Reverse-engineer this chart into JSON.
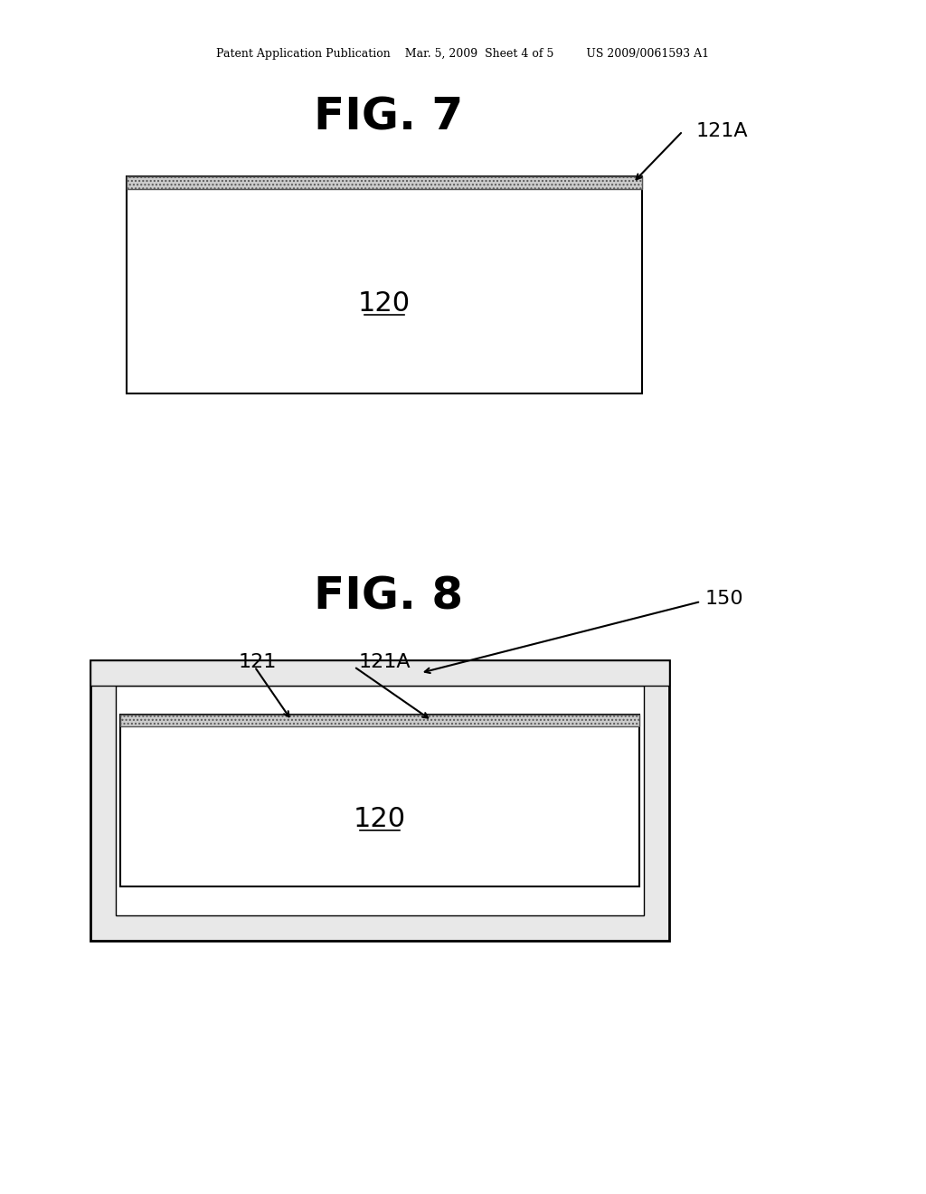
{
  "background_color": "#ffffff",
  "header_text": "Patent Application Publication    Mar. 5, 2009  Sheet 4 of 5         US 2009/0061593 A1",
  "fig7_title": "FIG. 7",
  "fig8_title": "FIG. 8",
  "fig7_label_120": "120",
  "fig7_label_121A": "121A",
  "fig8_label_120": "120",
  "fig8_label_121": "121",
  "fig8_label_121A": "121A",
  "fig8_label_150": "150"
}
